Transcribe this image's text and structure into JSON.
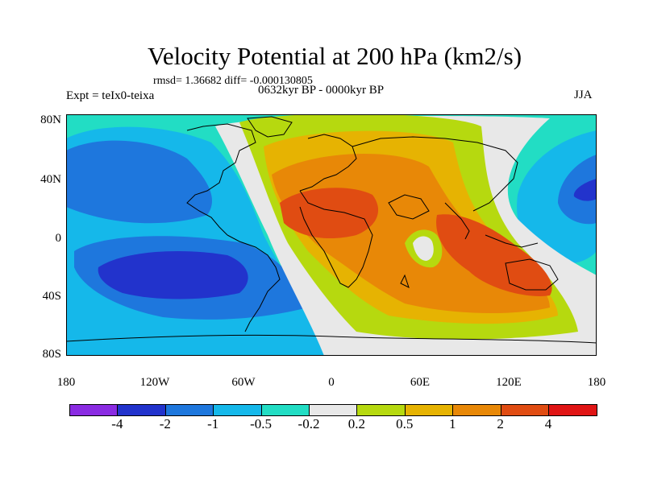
{
  "header": {
    "title": "Velocity Potential at 200 hPa (km2/s)",
    "stats": "rmsd= 1.36682 diff= -0.000130805",
    "experiment": "Expt = teIx0-teixa",
    "period": "0632kyr BP - 0000kyr BP",
    "season": "JJA"
  },
  "axes": {
    "lat_labels": [
      "80N",
      "40N",
      "0",
      "40S",
      "80S"
    ],
    "lon_labels": [
      "180",
      "120W",
      "60W",
      "0",
      "60E",
      "120E",
      "180"
    ]
  },
  "colorbar": {
    "colors": [
      "#8a2be2",
      "#2233cc",
      "#1e77dd",
      "#15b8ea",
      "#22ddc4",
      "#e8e8e8",
      "#b6d90f",
      "#e6b302",
      "#e88807",
      "#e04c12",
      "#e01515"
    ],
    "labels": [
      "-4",
      "-2",
      "-1",
      "-0.5",
      "-0.2",
      "0.2",
      "0.5",
      "1",
      "2",
      "4"
    ]
  }
}
